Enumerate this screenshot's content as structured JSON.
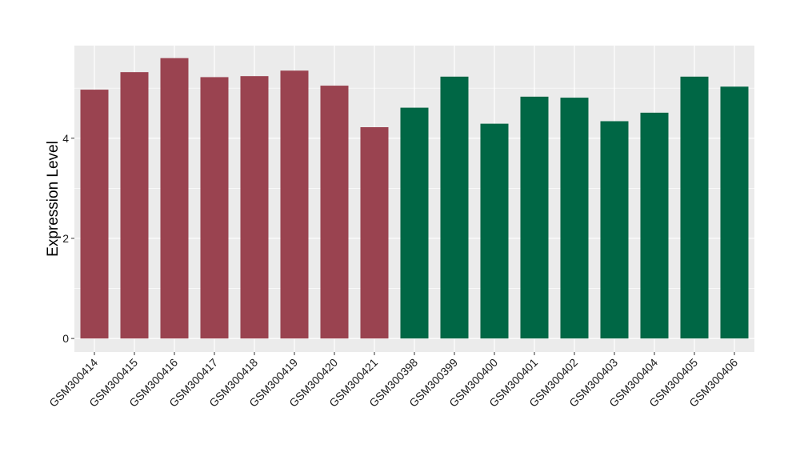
{
  "chart_data": {
    "type": "bar",
    "title": "",
    "xlabel": "",
    "ylabel": "Expression Level",
    "ylim": [
      -0.27,
      5.85
    ],
    "yticks": [
      0,
      2,
      4
    ],
    "y_tick_labels": [
      "0",
      "2",
      "4"
    ],
    "grid": true,
    "legend": "none",
    "categories": [
      "GSM300414",
      "GSM300415",
      "GSM300416",
      "GSM300417",
      "GSM300418",
      "GSM300419",
      "GSM300420",
      "GSM300421",
      "GSM300398",
      "GSM300399",
      "GSM300400",
      "GSM300401",
      "GSM300402",
      "GSM300403",
      "GSM300404",
      "GSM300405",
      "GSM300406"
    ],
    "values": [
      4.97,
      5.32,
      5.6,
      5.22,
      5.24,
      5.35,
      5.05,
      4.22,
      4.61,
      5.23,
      4.29,
      4.83,
      4.81,
      4.34,
      4.51,
      5.23,
      5.03
    ],
    "groups": [
      "group1",
      "group1",
      "group1",
      "group1",
      "group1",
      "group1",
      "group1",
      "group1",
      "group2",
      "group2",
      "group2",
      "group2",
      "group2",
      "group2",
      "group2",
      "group2",
      "group2"
    ],
    "colors": {
      "group1": "#9a4350",
      "group2": "#006745"
    },
    "panel_background": "#ebebeb",
    "grid_color": "#ffffff"
  }
}
